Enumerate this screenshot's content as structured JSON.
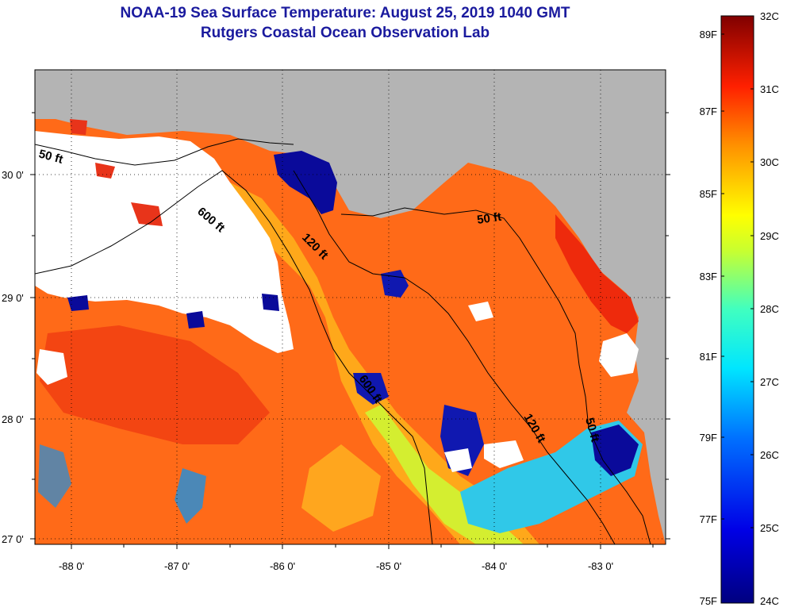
{
  "title": "NOAA-19 Sea Surface Temperature:  August 25, 2019 1040 GMT",
  "subtitle": "Rutgers Coastal Ocean Observation Lab",
  "map": {
    "lon_range": [
      -88.3,
      -82.45
    ],
    "lat_range": [
      26.95,
      30.85
    ],
    "x_ticks": [
      {
        "value": -88,
        "label": "-88 0'"
      },
      {
        "value": -87,
        "label": "-87 0'"
      },
      {
        "value": -86,
        "label": "-86 0'"
      },
      {
        "value": -85,
        "label": "-85 0'"
      },
      {
        "value": -84,
        "label": "-84 0'"
      },
      {
        "value": -83,
        "label": "-83 0'"
      }
    ],
    "y_ticks": [
      {
        "value": 30,
        "label": "30 0'"
      },
      {
        "value": 29,
        "label": "29 0'"
      },
      {
        "value": 28,
        "label": "28 0'"
      },
      {
        "value": 27,
        "label": "27 0'"
      }
    ],
    "contour_labels": [
      "50 ft",
      "600 ft",
      "120 ft",
      "50 ft",
      "600 ft",
      "120 ft",
      "50 ft"
    ],
    "colors": {
      "land": "#b4b4b4",
      "cloud": "#ffffff",
      "warm": "#ff5a14",
      "hot": "#e61e0a",
      "mid": "#ffa014",
      "cool": "#c8f028",
      "cold": "#28d2e6",
      "coldest": "#0a0a96"
    }
  },
  "colorbar": {
    "celsius_labels": [
      "32C",
      "31C",
      "30C",
      "29C",
      "28C",
      "27C",
      "26C",
      "25C",
      "24C"
    ],
    "fahrenheit_labels": [
      "89F",
      "87F",
      "85F",
      "83F",
      "81F",
      "79F",
      "77F",
      "75F"
    ],
    "range_c": [
      24,
      32
    ]
  }
}
